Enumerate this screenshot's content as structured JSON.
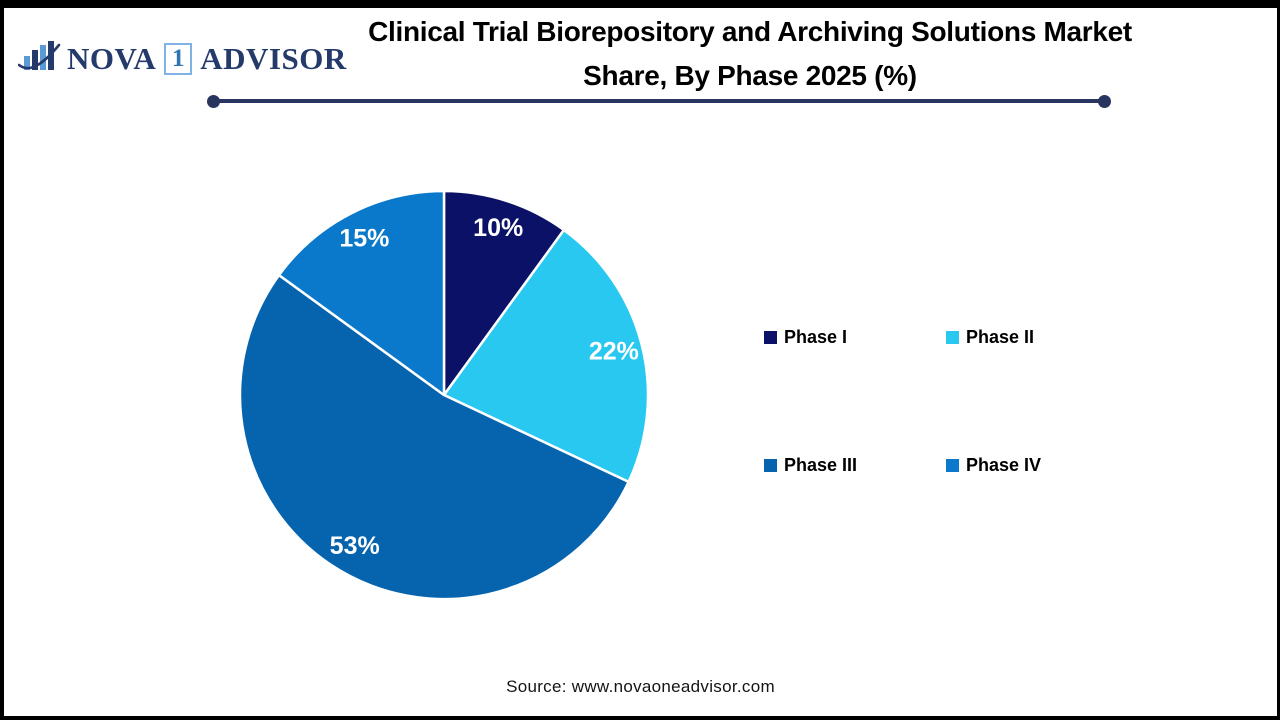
{
  "logo": {
    "nova": "NOVA",
    "one": "1",
    "advisor": "ADVISOR"
  },
  "header": {
    "title_line1": "Clinical Trial Biorepository and Archiving Solutions Market",
    "title_line2": "Share, By Phase 2025 (%)"
  },
  "chart_data": {
    "type": "pie",
    "title": "Clinical Trial Biorepository and Archiving Solutions Market Share, By Phase 2025 (%)",
    "categories": [
      "Phase I",
      "Phase II",
      "Phase III",
      "Phase IV"
    ],
    "values": [
      10,
      22,
      53,
      15
    ],
    "unit": "%",
    "data_labels": [
      "10%",
      "22%",
      "53%",
      "15%"
    ],
    "colors": [
      "#0A1166",
      "#28C8F0",
      "#0664AF",
      "#0B79CB"
    ],
    "start_angle_deg": 0,
    "direction": "clockwise",
    "slice_border_color": "#FFFFFF",
    "label_color": "#FFFFFF",
    "legend_position": "right"
  },
  "legend": {
    "items": [
      {
        "label": "Phase I",
        "color": "#0A1166"
      },
      {
        "label": "Phase II",
        "color": "#28C8F0"
      },
      {
        "label": "Phase III",
        "color": "#0664AF"
      },
      {
        "label": "Phase IV",
        "color": "#0B79CB"
      }
    ]
  },
  "footer": {
    "source": "Source: www.novaoneadvisor.com"
  },
  "style": {
    "accent_color": "#28355E",
    "logo_navy": "#243A6B",
    "logo_light_blue": "#5B9BD5"
  }
}
